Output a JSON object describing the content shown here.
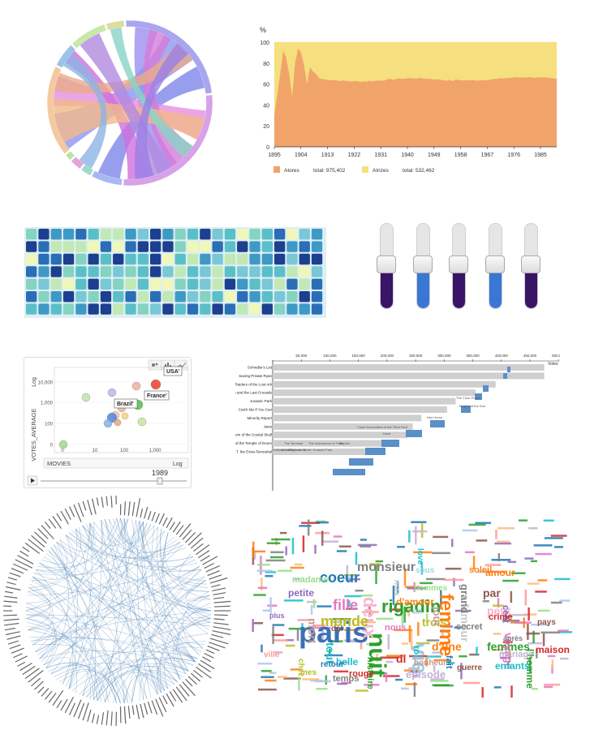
{
  "area_chart": {
    "ylabel": "%",
    "yticks": [
      "0",
      "20",
      "40",
      "60",
      "80",
      "100"
    ],
    "xticks": [
      "1895",
      "1904",
      "1913",
      "1922",
      "1931",
      "1940",
      "1949",
      "1958",
      "1967",
      "1976",
      "1985"
    ],
    "legend": [
      {
        "label": "Atores",
        "total_label": "total: 975,402",
        "color": "#f0a46a"
      },
      {
        "label": "Atrizes",
        "total_label": "total: 532,462",
        "color": "#f6df7e"
      }
    ]
  },
  "motion_chart": {
    "yaxis_label": "VOTES_AVERAGE",
    "xaxis_label": "MOVIES",
    "scale_y": "Log",
    "scale_x": "Log",
    "yticks": [
      "10,000",
      "1,000",
      "100",
      "0"
    ],
    "xticks": [
      "0",
      "10",
      "100",
      "1,000"
    ],
    "callouts": [
      {
        "label": "USA'"
      },
      {
        "label": "France'"
      },
      {
        "label": "Brazil'"
      }
    ],
    "year": "1989"
  },
  "bar_chart": {
    "xlabel": "Votes",
    "xticks": [
      "50,000",
      "100,000",
      "150,000",
      "200,000",
      "250,000",
      "300,000",
      "350,000",
      "400,000",
      "450,000",
      "500,000"
    ],
    "bars": [
      {
        "label": "Schindler's List"
      },
      {
        "label": "Saving Private Ryan"
      },
      {
        "label": "Raiders of the Lost Ark"
      },
      {
        "label": "s and the Last Crusade"
      },
      {
        "label": "Jurassic Park"
      },
      {
        "label": "Catch Me If You Can"
      },
      {
        "label": "Minority Report"
      },
      {
        "label": "Jaws"
      },
      {
        "label": "ingdom of the Crystal Skull"
      },
      {
        "label": "nes and the Temple of Doom"
      },
      {
        "label": "E.T. the Extra-Terrestrial"
      }
    ],
    "inner_labels": [
      {
        "label": "The Color Purple"
      },
      {
        "label": "Empire of the Sun"
      },
      {
        "label": "War Horse"
      },
      {
        "label": "Close Encounters of the Third Kind"
      },
      {
        "label": "Hook"
      },
      {
        "label": "The Terminal"
      },
      {
        "label": "The Adventures of Tintin"
      },
      {
        "label": "Munich"
      },
      {
        "label": "Artificial Intelligence: AI"
      },
      {
        "label": "Lincoln"
      },
      {
        "label": "The Lost World: Jurassic Park"
      }
    ]
  },
  "word_cloud": {
    "words": [
      {
        "t": "paris",
        "c": "#3b6fb6"
      },
      {
        "t": "nuit",
        "c": "#2ca02c"
      },
      {
        "t": "vie",
        "c": "#9ecae1"
      },
      {
        "t": "femme",
        "c": "#ff7f0e"
      },
      {
        "t": "deux",
        "c": "#f7b6d2"
      },
      {
        "t": "rigadin",
        "c": "#2ca02c"
      },
      {
        "t": "fille",
        "c": "#e377c2"
      },
      {
        "t": "coeur",
        "c": "#1f77b4"
      },
      {
        "t": "monde",
        "c": "#bcbd22"
      },
      {
        "t": "monsieur",
        "c": "#7f7f7f"
      },
      {
        "t": "mort",
        "c": "#c49c94"
      },
      {
        "t": "tout",
        "c": "#17becf"
      },
      {
        "t": "petite",
        "c": "#9467bd"
      },
      {
        "t": "madame",
        "c": "#98df8a"
      },
      {
        "t": "femmes",
        "c": "#2ca02c"
      },
      {
        "t": "par",
        "c": "#8c564b"
      },
      {
        "t": "voyage",
        "c": "#e377c2"
      },
      {
        "t": "famour",
        "c": "#c7c7c7"
      },
      {
        "t": "petit",
        "c": "#f7b6d2"
      },
      {
        "t": "d'une",
        "c": "#ff7f0e"
      },
      {
        "t": "dl",
        "c": "#d62728"
      },
      {
        "t": "trois",
        "c": "#bcbd22"
      },
      {
        "t": "amour",
        "c": "#ff7f0e"
      },
      {
        "t": "grand",
        "c": "#7f7f7f"
      },
      {
        "t": "l'homme",
        "c": "#2ca02c"
      },
      {
        "t": "maison",
        "c": "#d62728"
      },
      {
        "t": "mariage",
        "c": "#c5b0d5"
      },
      {
        "t": "enfants",
        "c": "#17becf"
      },
      {
        "t": "d'amour",
        "c": "#ff7f0e"
      },
      {
        "t": "hommes",
        "c": "#98df8a"
      },
      {
        "t": "plus",
        "c": "#9467bd"
      },
      {
        "t": "jour",
        "c": "#c49c94"
      },
      {
        "t": "secret",
        "c": "#7f7f7f"
      },
      {
        "t": "fait",
        "c": "#1f77b4"
      },
      {
        "t": "roi",
        "c": "#17becf"
      },
      {
        "t": "nous",
        "c": "#e377c2"
      },
      {
        "t": "histoire",
        "c": "#2ca02c"
      },
      {
        "t": "guerre",
        "c": "#8c564b"
      },
      {
        "t": "belle",
        "c": "#17becf"
      },
      {
        "t": "épisode",
        "c": "#c5b0d5"
      },
      {
        "t": "rouge",
        "c": "#d62728"
      },
      {
        "t": "temps",
        "c": "#7f7f7f"
      },
      {
        "t": "max",
        "c": "#c7c7c7"
      },
      {
        "t": "sous",
        "c": "#9edae5"
      },
      {
        "t": "love",
        "c": "#17becf"
      },
      {
        "t": "chez",
        "c": "#bcbd22"
      },
      {
        "t": "del",
        "c": "#8c564b"
      },
      {
        "t": "un",
        "c": "#aec7e8"
      },
      {
        "t": "ville",
        "c": "#ff9896"
      },
      {
        "t": "bonheur",
        "c": "#c49c94"
      },
      {
        "t": "retour",
        "c": "#1f77b4"
      },
      {
        "t": "après",
        "c": "#7f7f7f"
      },
      {
        "t": "soleil",
        "c": "#ff7f0e"
      },
      {
        "t": "cest",
        "c": "#9467bd"
      },
      {
        "t": "crime",
        "c": "#d62728"
      },
      {
        "t": "mes",
        "c": "#bcbd22"
      },
      {
        "t": "pays",
        "c": "#8c564b"
      }
    ]
  }
}
